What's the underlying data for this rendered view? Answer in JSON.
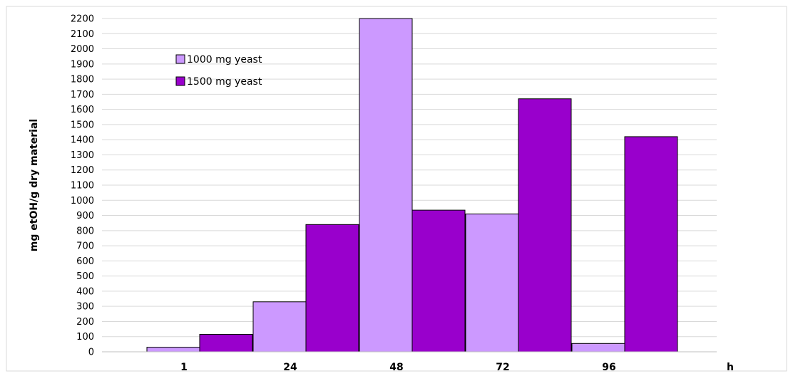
{
  "chart_data": {
    "type": "bar",
    "categories": [
      "1",
      "24",
      "48",
      "72",
      "96"
    ],
    "series": [
      {
        "name": "1000 mg yeast",
        "color": "#cc99ff",
        "values": [
          30,
          330,
          2200,
          910,
          55
        ]
      },
      {
        "name": "1500 mg yeast",
        "color": "#9900cc",
        "values": [
          115,
          840,
          935,
          1670,
          1420
        ]
      }
    ],
    "ylabel": "mg etOH/g dry material",
    "xlabel": "h",
    "ylim": [
      0,
      2200
    ],
    "ytick_step": 100,
    "grid": true,
    "legend_position": "top-left"
  }
}
